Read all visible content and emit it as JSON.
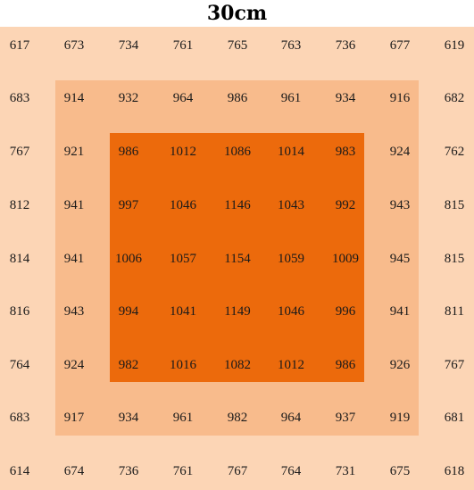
{
  "title": "30cm",
  "colors": {
    "outer": "#fcd5b5",
    "middle": "#f8bb8c",
    "inner": "#ec6a0c"
  },
  "grid": [
    [
      617,
      673,
      734,
      761,
      765,
      763,
      736,
      677,
      619
    ],
    [
      683,
      914,
      932,
      964,
      986,
      961,
      934,
      916,
      682
    ],
    [
      767,
      921,
      986,
      1012,
      1086,
      1014,
      983,
      924,
      762
    ],
    [
      812,
      941,
      997,
      1046,
      1146,
      1043,
      992,
      943,
      815
    ],
    [
      814,
      941,
      1006,
      1057,
      1154,
      1059,
      1009,
      945,
      815
    ],
    [
      816,
      943,
      994,
      1041,
      1149,
      1046,
      996,
      941,
      811
    ],
    [
      764,
      924,
      982,
      1016,
      1082,
      1012,
      986,
      926,
      767
    ],
    [
      683,
      917,
      934,
      961,
      982,
      964,
      937,
      919,
      681
    ],
    [
      614,
      674,
      736,
      761,
      767,
      764,
      731,
      675,
      618
    ]
  ]
}
